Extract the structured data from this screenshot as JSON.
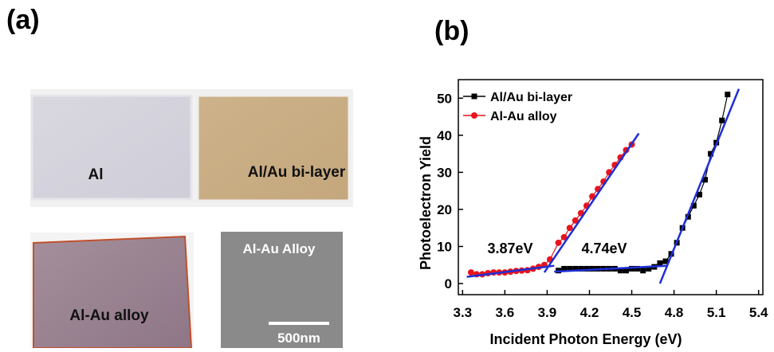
{
  "panel_labels": {
    "a": "(a)",
    "b": "(b)"
  },
  "photos": {
    "al": "Al",
    "bilayer": "Al/Au bi-layer",
    "alloy": "Al-Au alloy",
    "sem_title": "Al-Au Alloy",
    "scale_bar": "500nm"
  },
  "chart_data": {
    "type": "line",
    "x_label": "Incident Photon Energy (eV)",
    "y_label": "Photoelectron Yield",
    "xlim": [
      3.27,
      5.43
    ],
    "ylim": [
      -3,
      55
    ],
    "xticks": [
      3.3,
      3.6,
      3.9,
      4.2,
      4.5,
      4.8,
      5.1,
      5.4
    ],
    "yticks": [
      0,
      10,
      20,
      30,
      40,
      50
    ],
    "legend": "top-left",
    "series": [
      {
        "name": "Al/Au bi-layer",
        "color": "#000000",
        "marker": "square",
        "x": [
          3.98,
          4.02,
          4.06,
          4.1,
          4.14,
          4.18,
          4.22,
          4.26,
          4.3,
          4.34,
          4.38,
          4.42,
          4.46,
          4.5,
          4.54,
          4.58,
          4.62,
          4.66,
          4.7,
          4.74,
          4.78,
          4.82,
          4.86,
          4.9,
          4.94,
          4.98,
          5.02,
          5.06,
          5.1,
          5.14,
          5.18
        ],
        "values": [
          3.5,
          4,
          4,
          4,
          4,
          4,
          4,
          4,
          4,
          4,
          4,
          3.5,
          3.5,
          4,
          4,
          3.5,
          4,
          4.5,
          5.5,
          6,
          8,
          11,
          15,
          18,
          21,
          24,
          28,
          35,
          38,
          44,
          51
        ]
      },
      {
        "name": "Al-Au alloy",
        "color": "#e8141c",
        "marker": "circle",
        "x": [
          3.36,
          3.4,
          3.44,
          3.48,
          3.52,
          3.56,
          3.6,
          3.64,
          3.68,
          3.72,
          3.76,
          3.8,
          3.84,
          3.88,
          3.92,
          3.98,
          4.02,
          4.06,
          4.1,
          4.14,
          4.18,
          4.22,
          4.26,
          4.3,
          4.34,
          4.38,
          4.42,
          4.46,
          4.5
        ],
        "values": [
          3,
          2.5,
          2.5,
          2.8,
          3,
          3,
          3,
          3.2,
          3.4,
          3.5,
          3.6,
          4,
          4.5,
          5,
          6.5,
          11,
          12.5,
          15,
          17,
          19,
          21,
          23.5,
          25.5,
          27.5,
          30,
          32,
          34,
          36,
          37.5
        ]
      }
    ],
    "fit_color": "#1f2fd6",
    "fits": [
      {
        "x": [
          3.33,
          3.95
        ],
        "values": [
          1.8,
          4.8
        ]
      },
      {
        "x": [
          3.88,
          4.55
        ],
        "values": [
          3,
          40.5
        ]
      },
      {
        "x": [
          3.95,
          4.75
        ],
        "values": [
          3.2,
          4.8
        ]
      },
      {
        "x": [
          4.7,
          5.26
        ],
        "values": [
          0,
          52.5
        ]
      }
    ],
    "annotations": [
      "3.87eV",
      "4.74eV"
    ]
  }
}
